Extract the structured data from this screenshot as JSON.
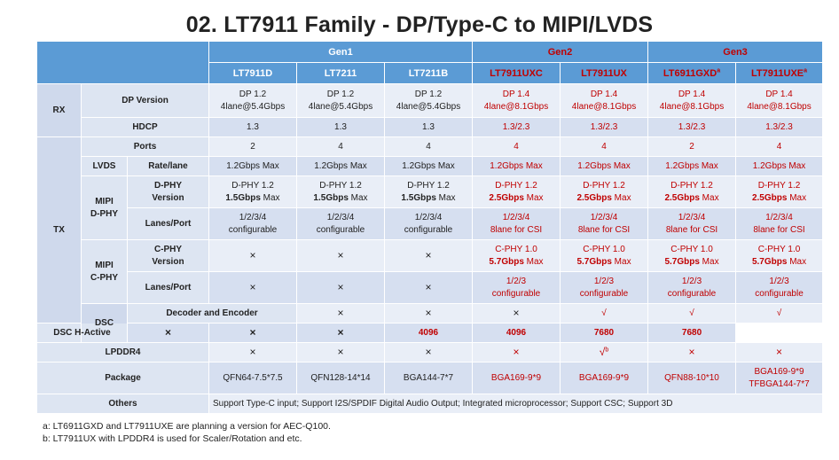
{
  "title": "02. LT7911 Family - DP/Type-C to MIPI/LVDS",
  "colors": {
    "header_bg": "#5b9bd5",
    "row_light": "#e9eef7",
    "row_dark": "#d6dff0",
    "accent_red": "#c00000"
  },
  "header": {
    "gen1": "Gen1",
    "gen2": "Gen2",
    "gen3": "Gen3",
    "products": [
      "LT7911D",
      "LT7211",
      "LT7211B",
      "LT7911UXC",
      "LT7911UX",
      "LT6911GXD",
      "LT7911UXE"
    ],
    "product_sup": {
      "gxd": "a",
      "uxe": "a"
    }
  },
  "groups": {
    "rx": "RX",
    "tx": "TX",
    "dsc": "DSC",
    "lvds": "LVDS",
    "mipi_dphy": "MIPI\nD-PHY",
    "mipi_cphy": "MIPI\nC-PHY"
  },
  "row_labels": {
    "dp_version": "DP Version",
    "hdcp": "HDCP",
    "ports": "Ports",
    "rate_lane": "Rate/lane",
    "dphy_version": "D-PHY\nVersion",
    "lanes_port": "Lanes/Port",
    "cphy_version": "C-PHY\nVersion",
    "lanes_port2": "Lanes/Port",
    "decoder": "Decoder and Encoder",
    "dsc_h": "DSC H-Active",
    "lpddr4": "LPDDR4",
    "package": "Package",
    "others": "Others"
  },
  "rows": {
    "dp_version": [
      [
        "DP 1.2",
        "4lane@5.4Gbps"
      ],
      [
        "DP 1.2",
        "4lane@5.4Gbps"
      ],
      [
        "DP 1.2",
        "4lane@5.4Gbps"
      ],
      [
        "DP 1.4",
        "4lane@8.1Gbps"
      ],
      [
        "DP 1.4",
        "4lane@8.1Gbps"
      ],
      [
        "DP 1.4",
        "4lane@8.1Gbps"
      ],
      [
        "DP 1.4",
        "4lane@8.1Gbps"
      ]
    ],
    "hdcp": [
      "1.3",
      "1.3",
      "1.3",
      "1.3/2.3",
      "1.3/2.3",
      "1.3/2.3",
      "1.3/2.3"
    ],
    "ports": [
      "2",
      "4",
      "4",
      "4",
      "4",
      "2",
      "4"
    ],
    "rate_lane": [
      "1.2Gbps Max",
      "1.2Gbps Max",
      "1.2Gbps Max",
      "1.2Gbps Max",
      "1.2Gbps Max",
      "1.2Gbps Max",
      "1.2Gbps Max"
    ],
    "dphy_version": [
      [
        "D-PHY 1.2",
        "1.5Gbps",
        " Max"
      ],
      [
        "D-PHY 1.2",
        "1.5Gbps",
        " Max"
      ],
      [
        "D-PHY 1.2",
        "1.5Gbps",
        " Max"
      ],
      [
        "D-PHY 1.2",
        "2.5Gbps",
        " Max"
      ],
      [
        "D-PHY 1.2",
        "2.5Gbps",
        " Max"
      ],
      [
        "D-PHY 1.2",
        "2.5Gbps",
        " Max"
      ],
      [
        "D-PHY 1.2",
        "2.5Gbps",
        " Max"
      ]
    ],
    "dphy_lanes": [
      [
        "1/2/3/4",
        "configurable"
      ],
      [
        "1/2/3/4",
        "configurable"
      ],
      [
        "1/2/3/4",
        "configurable"
      ],
      [
        "1/2/3/4",
        "8lane for CSI"
      ],
      [
        "1/2/3/4",
        "8lane for CSI"
      ],
      [
        "1/2/3/4",
        "8lane for CSI"
      ],
      [
        "1/2/3/4",
        "8lane for CSI"
      ]
    ],
    "cphy_version": [
      [
        "×"
      ],
      [
        "×"
      ],
      [
        "×"
      ],
      [
        "C-PHY 1.0",
        "5.7Gbps",
        " Max"
      ],
      [
        "C-PHY 1.0",
        "5.7Gbps",
        " Max"
      ],
      [
        "C-PHY 1.0",
        "5.7Gbps",
        " Max"
      ],
      [
        "C-PHY 1.0",
        "5.7Gbps",
        " Max"
      ]
    ],
    "cphy_lanes": [
      [
        "×"
      ],
      [
        "×"
      ],
      [
        "×"
      ],
      [
        "1/2/3",
        "configurable"
      ],
      [
        "1/2/3",
        "configurable"
      ],
      [
        "1/2/3",
        "configurable"
      ],
      [
        "1/2/3",
        "configurable"
      ]
    ],
    "decoder": [
      "×",
      "×",
      "×",
      "√",
      "√",
      "√",
      "√"
    ],
    "dsc_h": [
      "×",
      "×",
      "×",
      "4096",
      "4096",
      "7680",
      "7680"
    ],
    "lpddr4": [
      "×",
      "×",
      "×",
      "×",
      "√",
      "×",
      "×"
    ],
    "lpddr4_sup": "b",
    "package": [
      [
        "QFN64-7.5*7.5"
      ],
      [
        "QFN128-14*14"
      ],
      [
        "BGA144-7*7"
      ],
      [
        "BGA169-9*9"
      ],
      [
        "BGA169-9*9"
      ],
      [
        "QFN88-10*10"
      ],
      [
        "BGA169-9*9",
        "TFBGA144-7*7"
      ]
    ],
    "others": "Support Type-C input; Support I2S/SPDIF Digital Audio Output; Integrated microprocessor; Support CSC; Support 3D"
  },
  "notes": [
    "a: LT6911GXD and LT7911UXE are planning a version for AEC-Q100.",
    "b: LT7911UX with LPDDR4 is used for Scaler/Rotation and etc."
  ]
}
